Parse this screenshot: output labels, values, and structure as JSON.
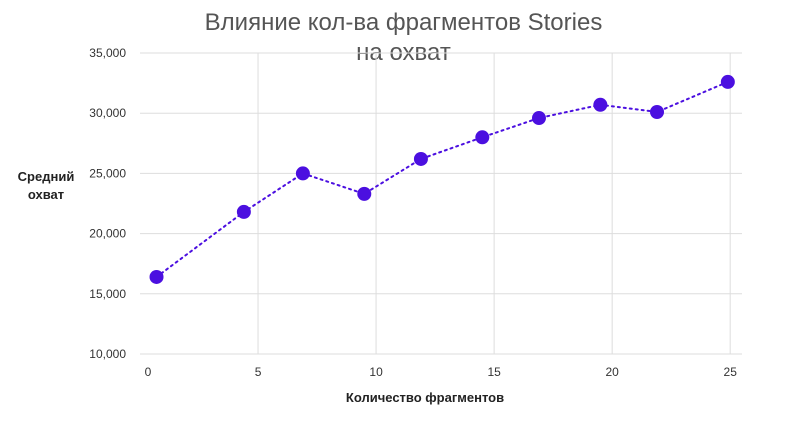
{
  "chart_data": {
    "type": "line",
    "title_line1": "Влияние кол-ва фрагментов Stories",
    "title_line2": "на охват",
    "xlabel": "Количество фрагментов",
    "ylabel_line1": "Средний",
    "ylabel_line2": "охват",
    "xlim": [
      0,
      25.5
    ],
    "ylim": [
      10000,
      35000
    ],
    "x_ticks": [
      0,
      5,
      10,
      15,
      20,
      25
    ],
    "y_ticks": [
      10000,
      15000,
      20000,
      25000,
      30000,
      35000
    ],
    "x_tick_labels": [
      "0",
      "5",
      "10",
      "15",
      "20",
      "25"
    ],
    "y_tick_labels": [
      "10,000",
      "15,000",
      "20,000",
      "25,000",
      "30,000",
      "35,000"
    ],
    "grid": true,
    "line_style": "dotted",
    "series": [
      {
        "color": "#4B0FE0",
        "x": [
          0.7,
          4.4,
          6.9,
          9.5,
          11.9,
          14.5,
          16.9,
          19.5,
          21.9,
          24.9
        ],
        "y": [
          16400,
          21800,
          25000,
          23300,
          26200,
          28000,
          29600,
          30700,
          30100,
          32600
        ]
      }
    ]
  }
}
